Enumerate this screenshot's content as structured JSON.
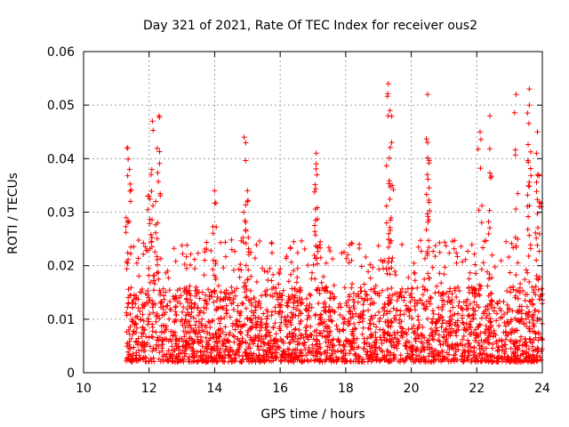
{
  "chart_data": {
    "type": "scatter",
    "title": "Day 321 of 2021, Rate Of TEC Index for receiver ous2",
    "xlabel": "GPS time / hours",
    "ylabel": "ROTI / TECUs",
    "xlim": [
      10,
      24
    ],
    "ylim": [
      0,
      0.06
    ],
    "x_ticks": [
      "10",
      "12",
      "14",
      "16",
      "18",
      "20",
      "22",
      "24"
    ],
    "y_ticks": [
      "0",
      "0.01",
      "0.02",
      "0.03",
      "0.04",
      "0.05",
      "0.06"
    ],
    "x_tick_values": [
      10,
      12,
      14,
      16,
      18,
      20,
      22,
      24
    ],
    "y_tick_values": [
      0,
      0.01,
      0.02,
      0.03,
      0.04,
      0.05,
      0.06
    ],
    "grid": true,
    "marker": "+",
    "series": [
      {
        "name": "ROTI",
        "color": "#ff0000",
        "x_range": [
          11.3,
          24.0
        ],
        "note": "dense cloud of thousands of points; representative envelope values below",
        "peaks": [
          {
            "x": 11.35,
            "y": 0.042
          },
          {
            "x": 11.4,
            "y": 0.038
          },
          {
            "x": 12.1,
            "y": 0.047
          },
          {
            "x": 12.3,
            "y": 0.048
          },
          {
            "x": 12.0,
            "y": 0.033
          },
          {
            "x": 12.2,
            "y": 0.032
          },
          {
            "x": 14.0,
            "y": 0.034
          },
          {
            "x": 14.9,
            "y": 0.044
          },
          {
            "x": 15.0,
            "y": 0.034
          },
          {
            "x": 17.1,
            "y": 0.041
          },
          {
            "x": 17.1,
            "y": 0.039
          },
          {
            "x": 19.3,
            "y": 0.054
          },
          {
            "x": 19.35,
            "y": 0.049
          },
          {
            "x": 19.4,
            "y": 0.043
          },
          {
            "x": 20.5,
            "y": 0.052
          },
          {
            "x": 20.5,
            "y": 0.043
          },
          {
            "x": 22.1,
            "y": 0.045
          },
          {
            "x": 22.4,
            "y": 0.048
          },
          {
            "x": 23.2,
            "y": 0.052
          },
          {
            "x": 23.6,
            "y": 0.053
          },
          {
            "x": 23.6,
            "y": 0.05
          },
          {
            "x": 23.85,
            "y": 0.045
          },
          {
            "x": 23.9,
            "y": 0.037
          }
        ],
        "baseline_band": [
          0.002,
          0.016
        ],
        "typical_upper": 0.025
      }
    ]
  }
}
